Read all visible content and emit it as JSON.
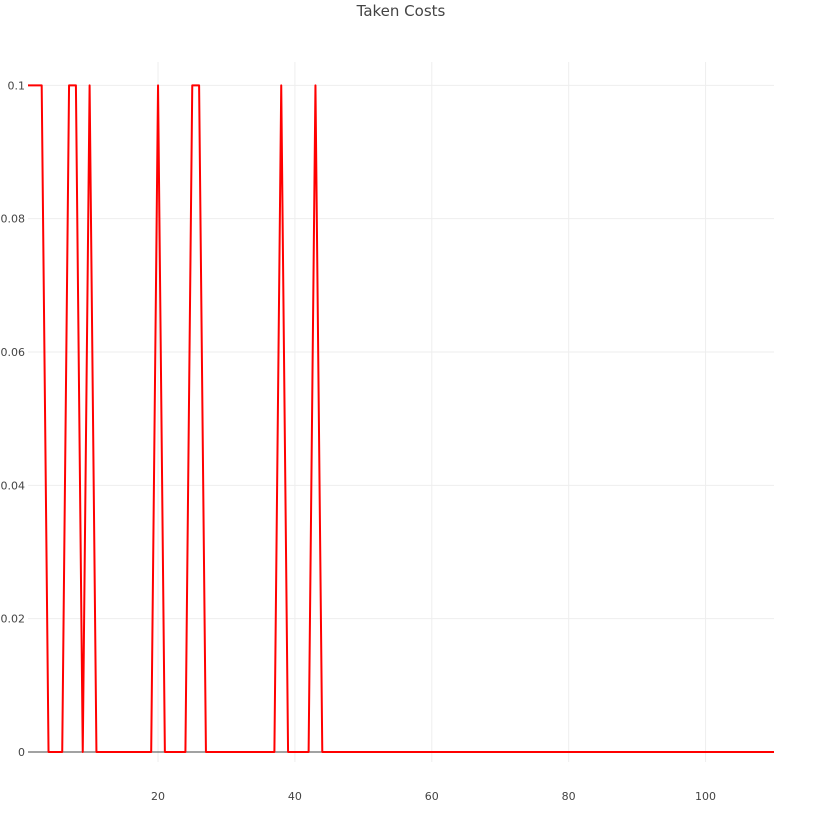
{
  "chart_data": {
    "type": "line",
    "title": "Taken Costs",
    "xlabel": "",
    "ylabel": "",
    "xlim": [
      1,
      110
    ],
    "ylim": [
      -0.0015,
      0.1035
    ],
    "x_ticks": [
      20,
      40,
      60,
      80,
      100
    ],
    "y_ticks": [
      0,
      0.02,
      0.04,
      0.06,
      0.08,
      0.1
    ],
    "y_tick_labels": [
      "0",
      "0.02",
      "0.04",
      "0.06",
      "0.08",
      "0.1"
    ],
    "grid": true,
    "legend": false,
    "series": [
      {
        "color": "#ff0000",
        "x": [
          1,
          2,
          3,
          4,
          5,
          6,
          7,
          8,
          9,
          10,
          11,
          12,
          13,
          14,
          15,
          16,
          17,
          18,
          19,
          20,
          21,
          22,
          23,
          24,
          25,
          26,
          27,
          28,
          29,
          30,
          31,
          32,
          33,
          34,
          35,
          36,
          37,
          38,
          39,
          40,
          41,
          42,
          43,
          44,
          45,
          46,
          47,
          48,
          49,
          50,
          51,
          52,
          53,
          54,
          55,
          56,
          57,
          58,
          59,
          60,
          61,
          62,
          63,
          64,
          65,
          66,
          67,
          68,
          69,
          70,
          71,
          72,
          73,
          74,
          75,
          76,
          77,
          78,
          79,
          80,
          81,
          82,
          83,
          84,
          85,
          86,
          87,
          88,
          89,
          90,
          91,
          92,
          93,
          94,
          95,
          96,
          97,
          98,
          99,
          100,
          101,
          102,
          103,
          104,
          105,
          106,
          107,
          108,
          109,
          110
        ],
        "y": [
          0.1,
          0.1,
          0.1,
          0,
          0,
          0,
          0.1,
          0.1,
          0,
          0.1,
          0,
          0,
          0,
          0,
          0,
          0,
          0,
          0,
          0,
          0.1,
          0,
          0,
          0,
          0,
          0.1,
          0.1,
          0,
          0,
          0,
          0,
          0,
          0,
          0,
          0,
          0,
          0,
          0,
          0.1,
          0,
          0,
          0,
          0,
          0.1,
          0,
          0,
          0,
          0,
          0,
          0,
          0,
          0,
          0,
          0,
          0,
          0,
          0,
          0,
          0,
          0,
          0,
          0,
          0,
          0,
          0,
          0,
          0,
          0,
          0,
          0,
          0,
          0,
          0,
          0,
          0,
          0,
          0,
          0,
          0,
          0,
          0,
          0,
          0,
          0,
          0,
          0,
          0,
          0,
          0,
          0,
          0,
          0,
          0,
          0,
          0,
          0,
          0,
          0,
          0,
          0,
          0,
          0,
          0,
          0,
          0,
          0,
          0,
          0,
          0,
          0,
          0
        ]
      }
    ]
  }
}
